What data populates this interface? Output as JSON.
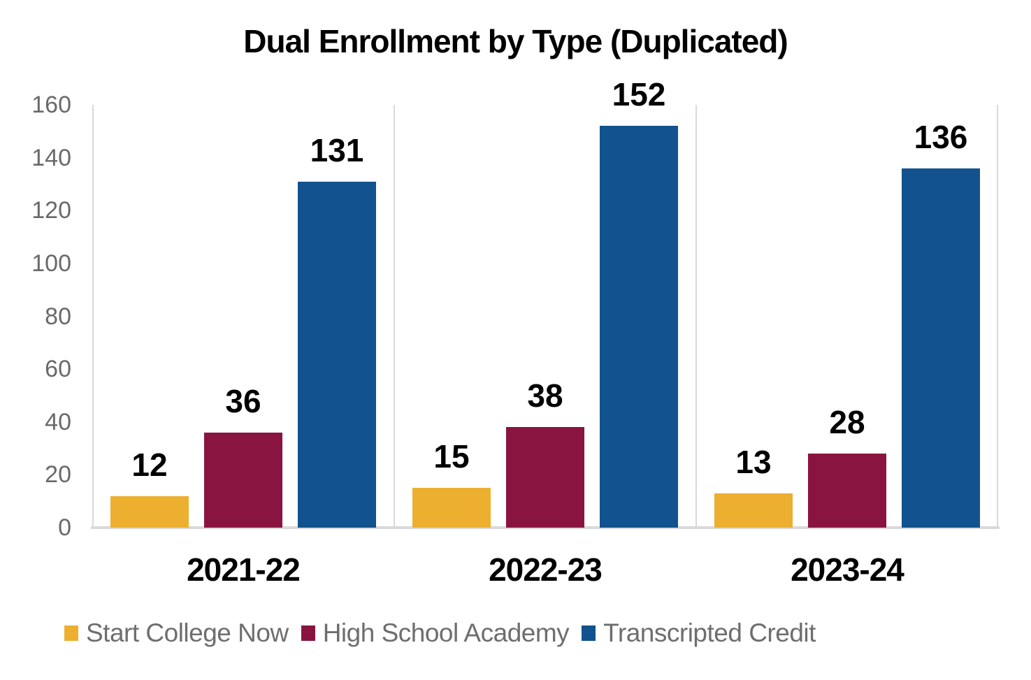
{
  "chart_data": {
    "type": "bar",
    "title": "Dual Enrollment by Type (Duplicated)",
    "categories": [
      "2021-22",
      "2022-23",
      "2023-24"
    ],
    "series": [
      {
        "name": "Start College Now",
        "color": "#EDAF2F",
        "values": [
          12,
          15,
          13
        ]
      },
      {
        "name": "High School Academy",
        "color": "#8A1440",
        "values": [
          36,
          38,
          28
        ]
      },
      {
        "name": "Transcripted Credit",
        "color": "#12528E",
        "values": [
          131,
          152,
          136
        ]
      }
    ],
    "ylim": [
      0,
      160
    ],
    "yticks": [
      0,
      20,
      40,
      60,
      80,
      100,
      120,
      140,
      160
    ],
    "grid": {
      "vertical_category_separators": true,
      "horizontal": false
    },
    "legend_position": "bottom",
    "data_labels": true
  },
  "style": {
    "background": "#FFFFFF",
    "axis_line_color": "#D9D9D9",
    "tick_label_color": "#696969",
    "legend_text_color": "#6E6E6E",
    "data_label_color": "#000000",
    "category_label_color": "#000000"
  }
}
